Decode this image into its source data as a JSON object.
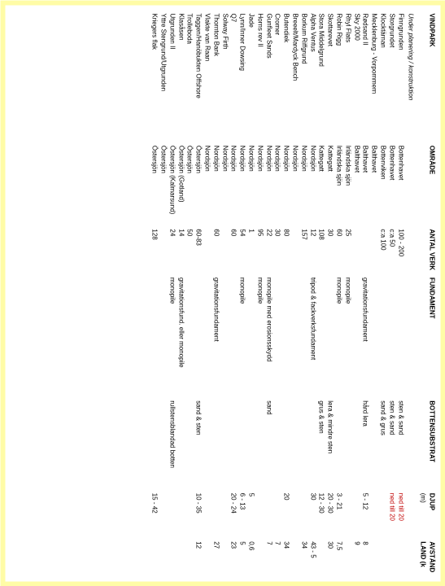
{
  "columns": {
    "vindpark": "VINDPARK",
    "omrade": "OMRÅDE",
    "antal": "ANTAL VERK",
    "fundament": "FUNDAMENT",
    "botten": "BOTTENSUBSTRAT",
    "djup": "DJUP",
    "djup_unit": "(m)",
    "avstand": "AVSTÅND",
    "avstand2": "LAND (k"
  },
  "section": "Under planering / konstruktion",
  "rows": [
    {
      "v": "Finngrunden",
      "o": "Bottenhavet",
      "a": "100 - 200",
      "f": "",
      "b": "sten & sand",
      "d": "ned till 20",
      "dred": true,
      "x": ""
    },
    {
      "v": "Storgrundet",
      "o": "Bottenhavet",
      "a": "c:a 50",
      "f": "",
      "b": "sten & sand",
      "d": "ned till 20",
      "dred": true,
      "x": ""
    },
    {
      "v": "Klocktärnan",
      "o": "Bottenviken",
      "a": "c:a 100",
      "f": "",
      "b": "sand & grus",
      "d": "",
      "x": ""
    },
    {
      "v": "Mecklenburg - Vorpommern",
      "o": "Balthavet",
      "a": "",
      "f": "",
      "b": "",
      "d": "",
      "x": ""
    },
    {
      "v": "Rødsand II",
      "o": "Balthavet",
      "a": "",
      "f": "gravitationsfundament",
      "b": "hård lera",
      "d": "5 - 12",
      "x": "8"
    },
    {
      "v": "Sky 2000",
      "o": "Balthavet",
      "a": "",
      "f": "",
      "b": "",
      "d": "",
      "x": "9"
    },
    {
      "v": "Rhyl Flats",
      "o": "Irländska sjön",
      "a": "25",
      "f": "monopile",
      "b": "",
      "d": "",
      "x": ""
    },
    {
      "v": "Robin Rigg",
      "o": "Irländska sjön",
      "a": "60",
      "f": "monopile",
      "b": "",
      "d": "3 - 21",
      "x": "7,5"
    },
    {
      "v": "Skottarevet",
      "o": "Kattegatt",
      "a": "30",
      "f": "",
      "b": "lera & mindre sten",
      "d": "20 - 30",
      "x": "30"
    },
    {
      "v": "Stora Middelgrund",
      "o": "Kattegatt",
      "a": "108",
      "f": "",
      "b": "grus & sten",
      "d": "12 - 30",
      "x": ""
    },
    {
      "v": "Alpha Ventus",
      "o": "Nordsjön",
      "a": "12",
      "f": "tripod & fackverksfundament",
      "b": "",
      "d": "30",
      "x": "43 - 5"
    },
    {
      "v": "Borkum Riffgrund",
      "o": "Nordsjön",
      "a": "157",
      "f": "",
      "b": "",
      "d": "",
      "x": "34"
    },
    {
      "v": "Breeelt/Mardyck Bench",
      "o": "Nordsjön",
      "a": "",
      "f": "",
      "b": "",
      "d": "",
      "x": ""
    },
    {
      "v": "Butendiek",
      "o": "Nordsjön",
      "a": "80",
      "f": "",
      "b": "",
      "d": "20",
      "x": "34"
    },
    {
      "v": "Cromer",
      "o": "Nordsjön",
      "a": "30",
      "f": "",
      "b": "",
      "d": "",
      "x": "7"
    },
    {
      "v": "Gunfleet Sands",
      "o": "Nordsjön",
      "a": "22",
      "f": "monopile med erosionsskydd",
      "b": "sand",
      "d": "",
      "x": "7"
    },
    {
      "v": "Horns rev II",
      "o": "Nordsjön",
      "a": "95",
      "f": "monopile",
      "b": "",
      "d": "",
      "x": ""
    },
    {
      "v": "Jade",
      "o": "Nordsjön",
      "a": "1",
      "f": "",
      "b": "",
      "d": "5",
      "x": "0,6"
    },
    {
      "v": "Lynn/Inner Dowsing",
      "o": "Nordsjön",
      "a": "54",
      "f": "monopile",
      "b": "",
      "d": "6 - 13",
      "x": "5"
    },
    {
      "v": "Q7",
      "o": "Nordsjön",
      "a": "60",
      "f": "",
      "b": "",
      "d": "20 - 24",
      "x": "23"
    },
    {
      "v": "Solway Firth",
      "o": "Nordsjön",
      "a": "",
      "f": "",
      "b": "",
      "d": "",
      "x": ""
    },
    {
      "v": "Thornton Bank",
      "o": "Nordsjön",
      "a": "60",
      "f": "gravitationsfundament",
      "b": "",
      "d": "",
      "x": "27"
    },
    {
      "v": "Vlakte van Raan",
      "o": "Nordsjön",
      "a": "",
      "f": "",
      "b": "",
      "d": "",
      "x": ""
    },
    {
      "v": "Yttre Stengrund/Utgrunden",
      "o": "Östersjön",
      "a": "",
      "f": "",
      "b": "",
      "d": "",
      "x": ""
    },
    {
      "v": "Kriegers flak",
      "o": "Östersjön",
      "a": "128",
      "f": "",
      "b": "",
      "d": "15 - 42",
      "x": ""
    },
    {
      "v": "Trolleboda",
      "o": "Östersjön",
      "a": "50",
      "f": "",
      "b": "",
      "d": "",
      "x": ""
    },
    {
      "v": "Taggen/Hanöbukten Offshore",
      "o": "Östersjön",
      "a": "60-83",
      "f": "",
      "b": "sand & sten",
      "d": "10 - 35",
      "x": "12"
    },
    {
      "v": "Klasåsen",
      "o": "Östersjön (Gotland)",
      "a": "14",
      "f": "gravitationsfund. eller monopile",
      "b": "",
      "d": "",
      "x": ""
    },
    {
      "v": "Utgrunden II",
      "o": "Östersjön (Kalmarsund)",
      "a": "24",
      "f": "monopile",
      "b": "rullstensblandad botten",
      "d": "",
      "x": ""
    }
  ],
  "row_order": [
    0,
    1,
    2,
    3,
    4,
    5,
    6,
    7,
    8,
    9,
    10,
    11,
    12,
    13,
    14,
    15,
    16,
    17,
    18,
    19,
    20,
    21,
    22,
    26,
    25,
    27,
    28,
    23,
    24
  ]
}
